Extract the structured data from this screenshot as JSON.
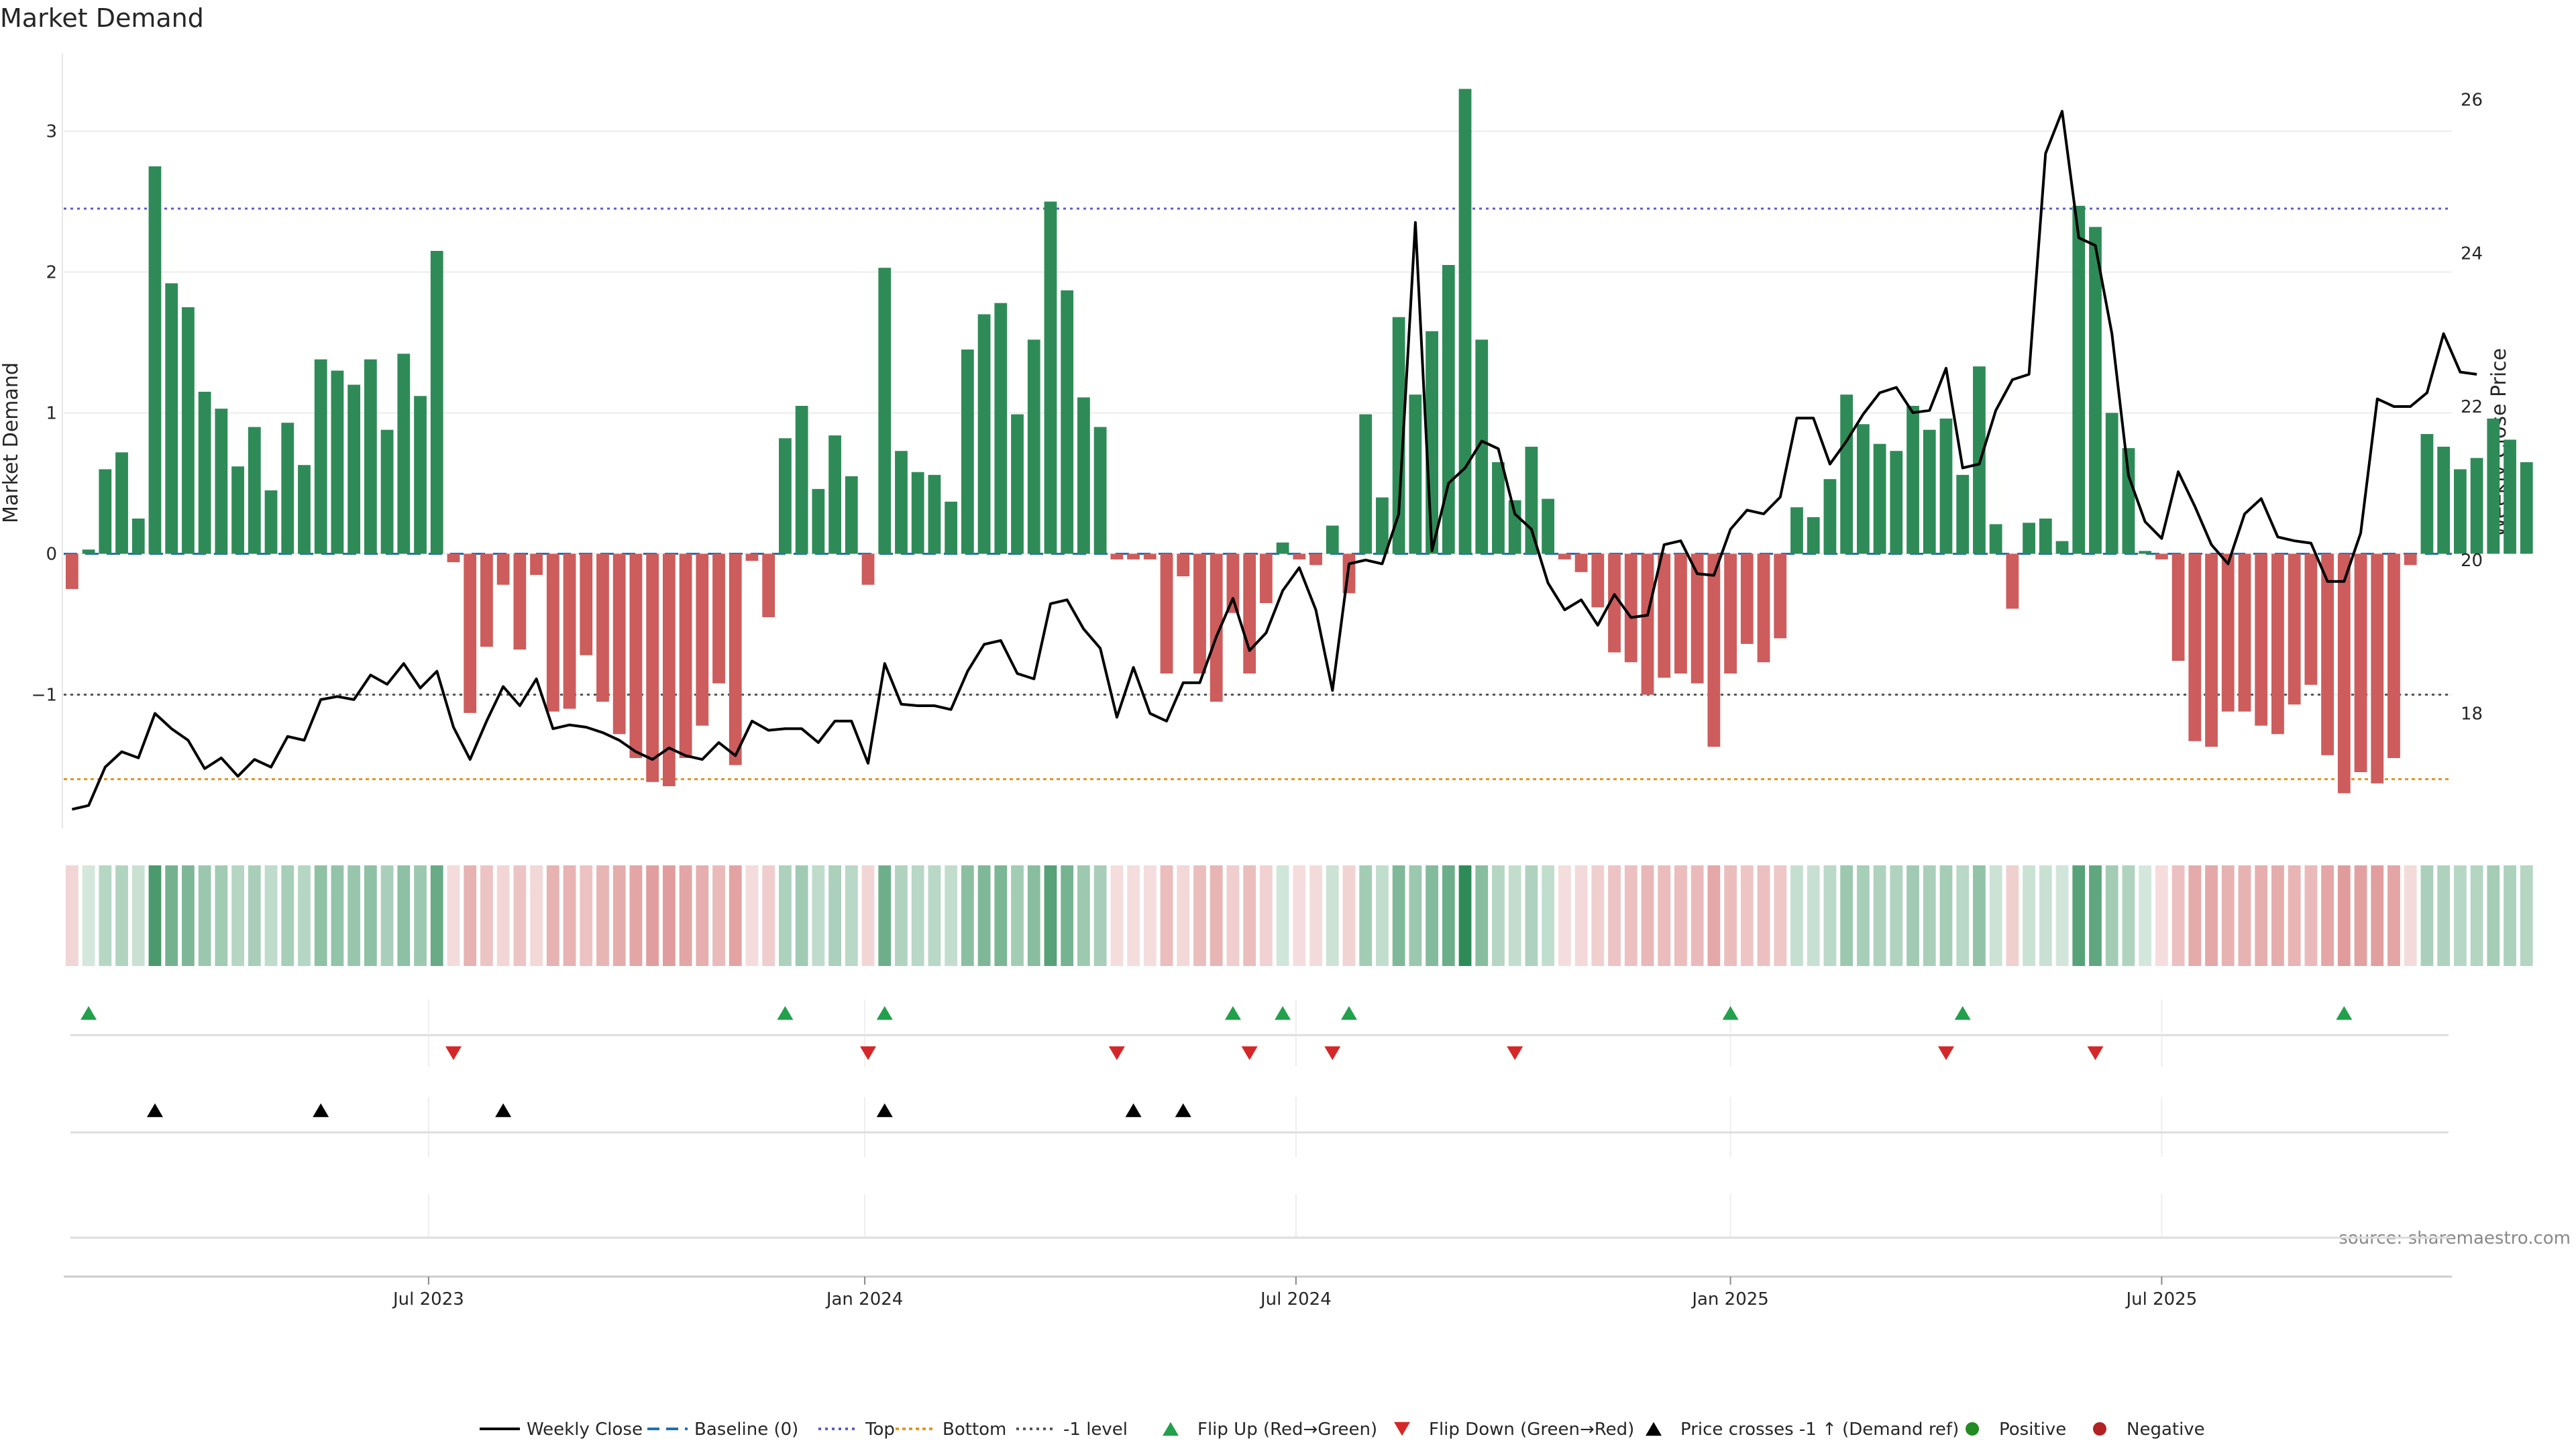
{
  "chart_data": {
    "type": "bar",
    "title": "Market Demand",
    "ylabel": "Market Demand",
    "y2label": "Weekly Close Price",
    "ylim": [
      -1.95,
      3.55
    ],
    "y2lim": [
      16.5,
      26.6
    ],
    "yticks": [
      "−1",
      "0",
      "1",
      "2",
      "3"
    ],
    "ytick_values": [
      -1,
      0,
      1,
      2,
      3
    ],
    "y2ticks": [
      "18",
      "20",
      "22",
      "24",
      "26"
    ],
    "y2tick_values": [
      18,
      20,
      22,
      24,
      26
    ],
    "xlim": [
      0,
      144
    ],
    "xticks": [
      {
        "label": "Jul 2023",
        "x": 22
      },
      {
        "label": "Jan 2024",
        "x": 48.3
      },
      {
        "label": "Jul 2024",
        "x": 74.3
      },
      {
        "label": "Jan 2025",
        "x": 100.5
      },
      {
        "label": "Jul 2025",
        "x": 126.5
      }
    ],
    "reference_lines": {
      "baseline": 0,
      "top": 2.45,
      "bottom": -1.6,
      "minus_one": -1
    },
    "demand": [
      -0.25,
      0.03,
      0.6,
      0.72,
      0.25,
      2.75,
      1.92,
      1.75,
      1.15,
      1.03,
      0.62,
      0.9,
      0.45,
      0.93,
      0.63,
      1.38,
      1.3,
      1.2,
      1.38,
      0.88,
      1.42,
      1.12,
      2.15,
      -0.06,
      -1.13,
      -0.66,
      -0.22,
      -0.68,
      -0.15,
      -1.12,
      -1.1,
      -0.72,
      -1.05,
      -1.28,
      -1.45,
      -1.62,
      -1.65,
      -1.45,
      -1.22,
      -0.92,
      -1.5,
      -0.05,
      -0.45,
      0.82,
      1.05,
      0.46,
      0.84,
      0.55,
      -0.22,
      2.03,
      0.73,
      0.58,
      0.56,
      0.37,
      1.45,
      1.7,
      1.78,
      0.99,
      1.52,
      2.5,
      1.87,
      1.11,
      0.9,
      -0.04,
      -0.04,
      -0.04,
      -0.85,
      -0.16,
      -0.85,
      -1.05,
      -0.42,
      -0.85,
      -0.35,
      0.08,
      -0.04,
      -0.08,
      0.2,
      -0.28,
      0.99,
      0.4,
      1.68,
      1.13,
      1.58,
      2.05,
      3.3,
      1.52,
      0.65,
      0.38,
      0.76,
      0.39,
      -0.04,
      -0.13,
      -0.38,
      -0.7,
      -0.77,
      -1.0,
      -0.88,
      -0.85,
      -0.92,
      -1.37,
      -0.85,
      -0.64,
      -0.77,
      -0.6,
      0.33,
      0.26,
      0.53,
      1.13,
      0.92,
      0.78,
      0.73,
      1.05,
      0.88,
      0.96,
      0.56,
      1.33,
      0.21,
      -0.39,
      0.22,
      0.25,
      0.09,
      2.47,
      2.32,
      1.0,
      0.75,
      0.02,
      -0.04,
      -0.76,
      -1.33,
      -1.37,
      -1.12,
      -1.12,
      -1.22,
      -1.28,
      -1.07,
      -0.93,
      -1.43,
      -1.7,
      -1.55,
      -1.63,
      -1.45,
      -0.08,
      0.85,
      0.76,
      0.6,
      0.68,
      0.96,
      0.81,
      0.65
    ],
    "weekly_close": [
      16.75,
      16.8,
      17.3,
      17.5,
      17.42,
      18.0,
      17.8,
      17.65,
      17.28,
      17.42,
      17.18,
      17.4,
      17.3,
      17.7,
      17.65,
      18.18,
      18.22,
      18.18,
      18.5,
      18.38,
      18.65,
      18.33,
      18.55,
      17.82,
      17.4,
      17.9,
      18.35,
      18.1,
      18.45,
      17.8,
      17.85,
      17.82,
      17.75,
      17.65,
      17.5,
      17.4,
      17.55,
      17.45,
      17.4,
      17.62,
      17.45,
      17.9,
      17.78,
      17.8,
      17.8,
      17.62,
      17.9,
      17.9,
      17.35,
      18.65,
      18.12,
      18.1,
      18.1,
      18.05,
      18.55,
      18.9,
      18.95,
      18.52,
      18.45,
      19.43,
      19.48,
      19.1,
      18.85,
      17.95,
      18.6,
      18.0,
      17.9,
      18.4,
      18.4,
      19.0,
      19.5,
      18.82,
      19.05,
      19.6,
      19.9,
      19.35,
      18.3,
      19.95,
      20.0,
      19.95,
      20.6,
      24.4,
      20.12,
      21.0,
      21.2,
      21.55,
      21.45,
      20.6,
      20.4,
      19.7,
      19.35,
      19.48,
      19.15,
      19.55,
      19.25,
      19.28,
      20.2,
      20.25,
      19.82,
      19.8,
      20.4,
      20.65,
      20.6,
      20.82,
      21.85,
      21.85,
      21.25,
      21.55,
      21.9,
      22.18,
      22.25,
      21.92,
      21.95,
      22.5,
      21.2,
      21.25,
      21.95,
      22.35,
      22.42,
      25.3,
      25.85,
      24.2,
      24.1,
      22.95,
      21.1,
      20.5,
      20.28,
      21.15,
      20.7,
      20.2,
      19.95,
      20.6,
      20.8,
      20.3,
      20.25,
      20.22,
      19.72,
      19.72,
      20.35,
      22.1,
      22.0,
      22.0,
      22.18,
      22.95,
      22.45,
      22.42
    ],
    "flip_up": [
      1,
      43,
      49,
      70,
      73,
      77,
      100,
      114,
      137
    ],
    "flip_down": [
      23,
      48,
      63,
      71,
      76,
      87,
      113,
      122
    ],
    "price_cross": [
      5,
      15,
      26,
      49,
      64,
      67
    ],
    "legend": [
      "Weekly Close",
      "Baseline (0)",
      "Top",
      "Bottom",
      "-1 level",
      "Flip Up (Red→Green)",
      "Flip Down (Green→Red)",
      "Price crosses -1 ↑ (Demand ref)",
      "Positive",
      "Negative"
    ],
    "source": "source: sharemaestro.com"
  },
  "colors": {
    "positive": "#2e8b57",
    "negative": "#cd5c5c",
    "flip_up": "#22a04b",
    "flip_down": "#d62728",
    "price": "#000000",
    "baseline": "#1f6fb4",
    "top": "#5a5ad6",
    "bottom": "#e69520",
    "minus_one": "#555555",
    "legend_positive": "#228b22",
    "legend_negative": "#b22222"
  }
}
